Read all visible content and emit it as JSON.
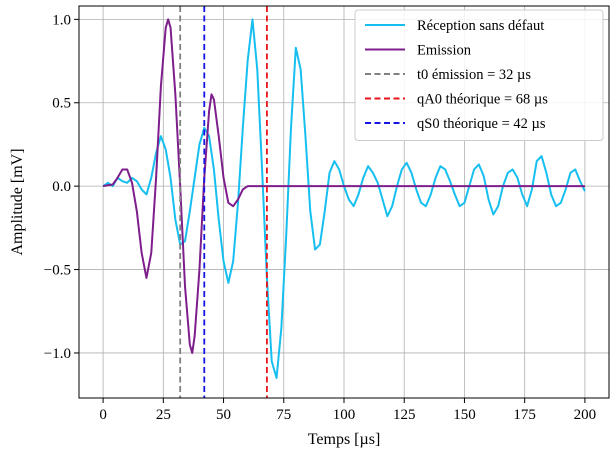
{
  "chart_data": {
    "type": "line",
    "xlabel": "Temps [µs]",
    "ylabel": "Amplitude [mV]",
    "xlim": [
      -10,
      210
    ],
    "ylim": [
      -1.27,
      1.08
    ],
    "xticks": [
      0,
      25,
      50,
      75,
      100,
      125,
      150,
      175,
      200
    ],
    "xtick_labels": [
      "0",
      "25",
      "50",
      "75",
      "100",
      "125",
      "150",
      "175",
      "200"
    ],
    "yticks": [
      -1.0,
      -0.5,
      0.0,
      0.5,
      1.0
    ],
    "ytick_labels": [
      "−1.0",
      "−0.5",
      "0.0",
      "0.5",
      "1.0"
    ],
    "grid": true,
    "legend_position": "top-right",
    "series": [
      {
        "name": "Réception sans défaut",
        "color": "#17bff0",
        "style": "solid",
        "points": [
          [
            0,
            0.0
          ],
          [
            2,
            0.02
          ],
          [
            4,
            0.0
          ],
          [
            6,
            0.05
          ],
          [
            8,
            0.03
          ],
          [
            10,
            0.02
          ],
          [
            12,
            0.05
          ],
          [
            14,
            0.03
          ],
          [
            16,
            -0.02
          ],
          [
            18,
            -0.05
          ],
          [
            20,
            0.05
          ],
          [
            22,
            0.2
          ],
          [
            24,
            0.3
          ],
          [
            26,
            0.22
          ],
          [
            28,
            0.05
          ],
          [
            30,
            -0.2
          ],
          [
            32,
            -0.35
          ],
          [
            34,
            -0.33
          ],
          [
            36,
            -0.15
          ],
          [
            38,
            0.05
          ],
          [
            40,
            0.25
          ],
          [
            42,
            0.35
          ],
          [
            44,
            0.3
          ],
          [
            46,
            0.1
          ],
          [
            48,
            -0.2
          ],
          [
            50,
            -0.45
          ],
          [
            52,
            -0.58
          ],
          [
            54,
            -0.45
          ],
          [
            56,
            -0.1
          ],
          [
            58,
            0.35
          ],
          [
            60,
            0.75
          ],
          [
            62,
            1.0
          ],
          [
            64,
            0.7
          ],
          [
            66,
            0.1
          ],
          [
            68,
            -0.55
          ],
          [
            70,
            -1.05
          ],
          [
            72,
            -1.15
          ],
          [
            74,
            -0.85
          ],
          [
            76,
            -0.3
          ],
          [
            78,
            0.35
          ],
          [
            80,
            0.83
          ],
          [
            82,
            0.7
          ],
          [
            84,
            0.3
          ],
          [
            86,
            -0.15
          ],
          [
            88,
            -0.38
          ],
          [
            90,
            -0.35
          ],
          [
            92,
            -0.15
          ],
          [
            94,
            0.08
          ],
          [
            96,
            0.15
          ],
          [
            98,
            0.1
          ],
          [
            100,
            0.0
          ],
          [
            102,
            -0.08
          ],
          [
            104,
            -0.12
          ],
          [
            106,
            -0.05
          ],
          [
            108,
            0.05
          ],
          [
            110,
            0.12
          ],
          [
            112,
            0.08
          ],
          [
            114,
            0.02
          ],
          [
            116,
            -0.08
          ],
          [
            118,
            -0.18
          ],
          [
            120,
            -0.12
          ],
          [
            122,
            0.0
          ],
          [
            124,
            0.1
          ],
          [
            126,
            0.14
          ],
          [
            128,
            0.08
          ],
          [
            130,
            -0.02
          ],
          [
            132,
            -0.1
          ],
          [
            134,
            -0.12
          ],
          [
            136,
            -0.05
          ],
          [
            138,
            0.05
          ],
          [
            140,
            0.12
          ],
          [
            142,
            0.1
          ],
          [
            144,
            0.03
          ],
          [
            146,
            -0.05
          ],
          [
            148,
            -0.12
          ],
          [
            150,
            -0.1
          ],
          [
            152,
            0.0
          ],
          [
            154,
            0.1
          ],
          [
            156,
            0.13
          ],
          [
            158,
            0.06
          ],
          [
            160,
            -0.08
          ],
          [
            162,
            -0.17
          ],
          [
            164,
            -0.12
          ],
          [
            166,
            0.0
          ],
          [
            168,
            0.08
          ],
          [
            170,
            0.1
          ],
          [
            172,
            0.05
          ],
          [
            174,
            -0.05
          ],
          [
            176,
            -0.12
          ],
          [
            178,
            -0.02
          ],
          [
            180,
            0.15
          ],
          [
            182,
            0.18
          ],
          [
            184,
            0.08
          ],
          [
            186,
            -0.05
          ],
          [
            188,
            -0.12
          ],
          [
            190,
            -0.1
          ],
          [
            192,
            -0.02
          ],
          [
            194,
            0.08
          ],
          [
            196,
            0.1
          ],
          [
            198,
            0.03
          ],
          [
            200,
            -0.03
          ]
        ]
      },
      {
        "name": "Emission",
        "color": "#7e1e8c",
        "style": "solid",
        "points": [
          [
            0,
            0.0
          ],
          [
            4,
            0.01
          ],
          [
            6,
            0.05
          ],
          [
            8,
            0.1
          ],
          [
            10,
            0.1
          ],
          [
            12,
            0.02
          ],
          [
            14,
            -0.15
          ],
          [
            16,
            -0.4
          ],
          [
            18,
            -0.55
          ],
          [
            20,
            -0.4
          ],
          [
            22,
            0.05
          ],
          [
            24,
            0.6
          ],
          [
            26,
            0.95
          ],
          [
            27,
            1.0
          ],
          [
            28,
            0.95
          ],
          [
            30,
            0.55
          ],
          [
            32,
            0.0
          ],
          [
            34,
            -0.6
          ],
          [
            36,
            -0.95
          ],
          [
            37,
            -1.0
          ],
          [
            38,
            -0.9
          ],
          [
            40,
            -0.5
          ],
          [
            42,
            0.05
          ],
          [
            44,
            0.45
          ],
          [
            45,
            0.55
          ],
          [
            46,
            0.52
          ],
          [
            48,
            0.3
          ],
          [
            50,
            0.05
          ],
          [
            52,
            -0.1
          ],
          [
            54,
            -0.12
          ],
          [
            56,
            -0.08
          ],
          [
            58,
            -0.02
          ],
          [
            60,
            0.0
          ],
          [
            70,
            0.0
          ],
          [
            100,
            0.0
          ],
          [
            150,
            0.0
          ],
          [
            200,
            0.0
          ]
        ]
      }
    ],
    "vlines": [
      {
        "name": "t0 émission = 32 µs",
        "x": 32,
        "color": "#808080"
      },
      {
        "name": "qA0 théorique = 68 µs",
        "x": 68,
        "color": "#e8141a"
      },
      {
        "name": "qS0 théorique = 42 µs",
        "x": 42,
        "color": "#1515e6"
      }
    ],
    "legend": [
      {
        "label": "Réception sans défaut",
        "color": "#17bff0",
        "style": "solid"
      },
      {
        "label": "Emission",
        "color": "#7e1e8c",
        "style": "solid"
      },
      {
        "label": "t0 émission = 32 µs",
        "color": "#808080",
        "style": "dashed"
      },
      {
        "label": "qA0 théorique = 68 µs",
        "color": "#e8141a",
        "style": "dashed"
      },
      {
        "label": "qS0 théorique = 42 µs",
        "color": "#1515e6",
        "style": "dashed"
      }
    ]
  }
}
